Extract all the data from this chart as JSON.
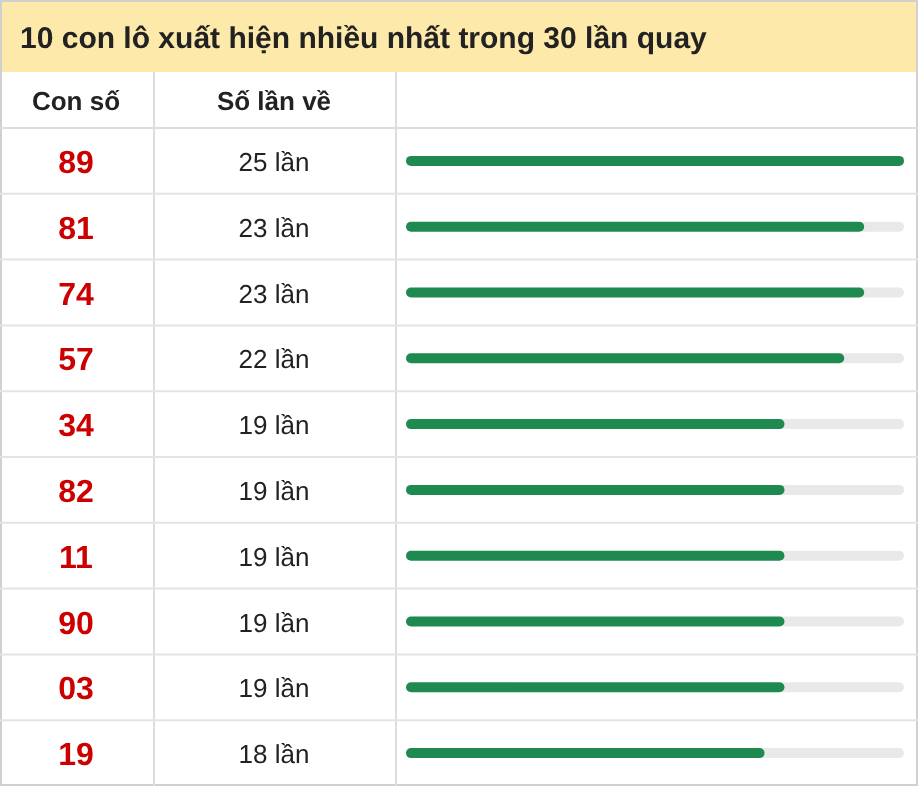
{
  "chart_data": {
    "type": "bar",
    "orientation": "horizontal",
    "title": "10 con lô xuất hiện nhiều nhất trong 30 lần quay",
    "ylabel": "Con số",
    "annotations": [
      "Số lần về"
    ],
    "categories": [
      "89",
      "81",
      "74",
      "57",
      "34",
      "82",
      "11",
      "90",
      "03",
      "19"
    ],
    "values": [
      25,
      23,
      23,
      22,
      19,
      19,
      19,
      19,
      19,
      18
    ],
    "value_labels": [
      "25 lần",
      "23 lần",
      "23 lần",
      "22 lần",
      "19 lần",
      "19 lần",
      "19 lần",
      "19 lần",
      "19 lần",
      "18 lần"
    ],
    "color": "#1e8a4f",
    "xlim": [
      0,
      25
    ]
  }
}
